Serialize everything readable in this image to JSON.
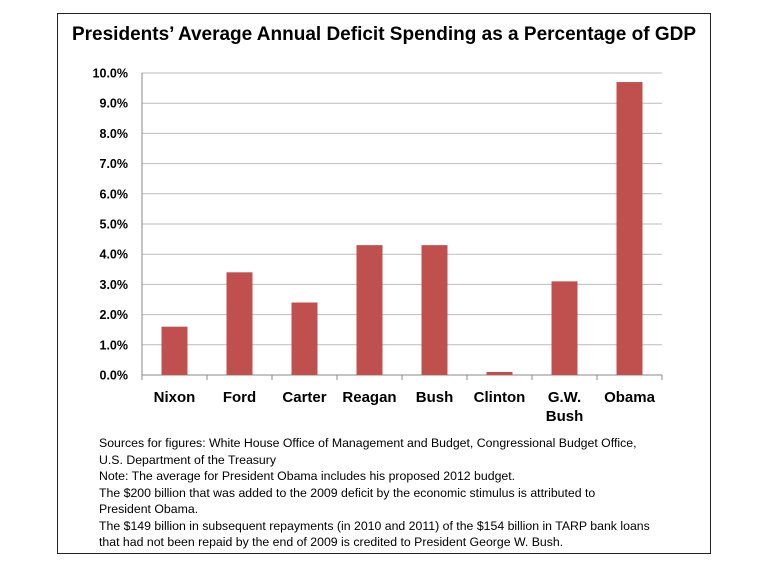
{
  "chart_data": {
    "type": "bar",
    "title": "Presidents’ Average Annual Deficit Spending as a Percentage of GDP",
    "categories": [
      "Nixon",
      "Ford",
      "Carter",
      "Reagan",
      "Bush",
      "Clinton",
      "G.W. Bush",
      "Obama"
    ],
    "values": [
      1.6,
      3.4,
      2.4,
      4.3,
      4.3,
      0.1,
      3.1,
      9.7
    ],
    "ylim": [
      0,
      10
    ],
    "yticks": [
      "0.0%",
      "1.0%",
      "2.0%",
      "3.0%",
      "4.0%",
      "5.0%",
      "6.0%",
      "7.0%",
      "8.0%",
      "9.0%",
      "10.0%"
    ],
    "xlabel": "",
    "ylabel": "",
    "grid": true,
    "bar_color": "#C0504D"
  },
  "notes": [
    "Sources for figures: White House Office of Management and Budget, Congressional Budget Office,",
    "U.S. Department of the Treasury",
    "Note: The average for President Obama includes his proposed 2012 budget.",
    "The $200 billion that was added to the 2009 deficit by the economic stimulus is attributed to",
    "President Obama.",
    "The $149 billion in subsequent repayments (in 2010 and 2011) of the $154 billion in TARP bank loans",
    "that had not been repaid by the end of 2009 is credited to President George W. Bush."
  ]
}
